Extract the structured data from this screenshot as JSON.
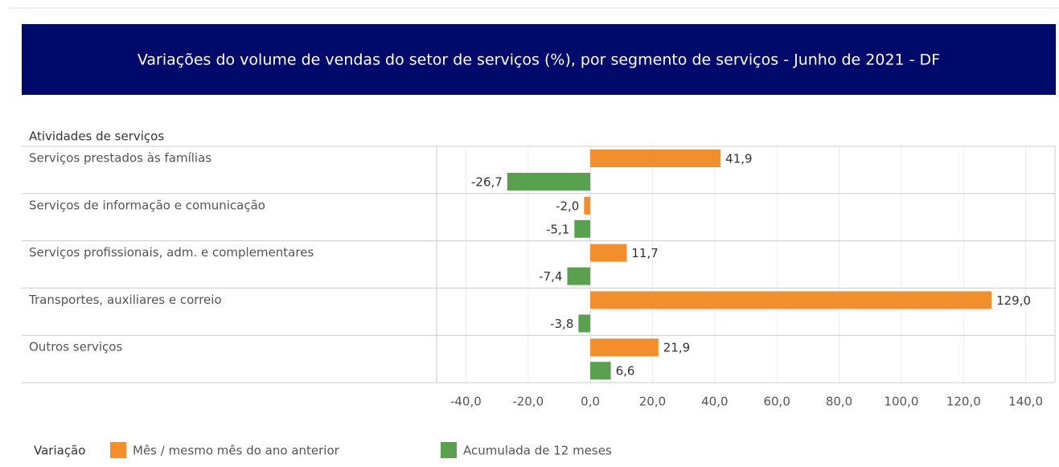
{
  "chart_data": {
    "type": "bar",
    "orientation": "horizontal",
    "title": "Variações do volume de vendas do setor de serviços (%), por segmento de serviços - Junho de 2021 - DF",
    "y_label": "Atividades de serviços",
    "legend_title": "Variação",
    "categories": [
      "Serviços prestados às famílias",
      "Serviços de informação e comunicação",
      "Serviços profissionais, adm. e complementares",
      "Transportes, auxiliares e correio",
      "Outros serviços"
    ],
    "series": [
      {
        "name": "Mês / mesmo mês do ano anterior",
        "color": "#f28e2b",
        "values": [
          41.9,
          -2.0,
          11.7,
          129.0,
          21.9
        ],
        "value_labels": [
          "41,9",
          "-2,0",
          "11,7",
          "129,0",
          "21,9"
        ]
      },
      {
        "name": "Acumulada de 12 meses",
        "color": "#59a14f",
        "values": [
          -26.7,
          -5.1,
          -7.4,
          -3.8,
          6.6
        ],
        "value_labels": [
          "-26,7",
          "-5,1",
          "-7,4",
          "-3,8",
          "6,6"
        ]
      }
    ],
    "xlim": [
      -49.4,
      149.4
    ],
    "xticks": [
      {
        "value": -40,
        "label": "-40,0"
      },
      {
        "value": -20,
        "label": "-20,0"
      },
      {
        "value": 0,
        "label": "0,0"
      },
      {
        "value": 20,
        "label": "20,0"
      },
      {
        "value": 40,
        "label": "40,0"
      },
      {
        "value": 60,
        "label": "60,0"
      },
      {
        "value": 80,
        "label": "80,0"
      },
      {
        "value": 100,
        "label": "100,0"
      },
      {
        "value": 120,
        "label": "120,0"
      },
      {
        "value": 140,
        "label": "140,0"
      }
    ],
    "grid": true,
    "title_background": "#000a6b"
  }
}
